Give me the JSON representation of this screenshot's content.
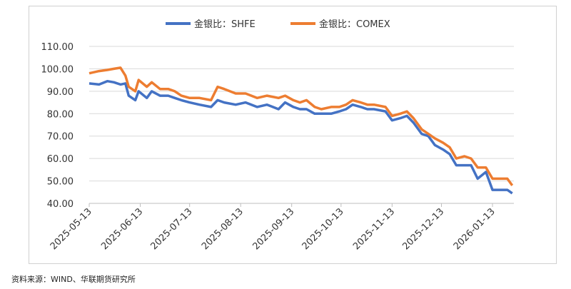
{
  "chart_data": {
    "type": "line",
    "title": "",
    "xlabel": "",
    "ylabel": "",
    "ylim": [
      40,
      110
    ],
    "yticks": [
      "40.00",
      "50.00",
      "60.00",
      "70.00",
      "80.00",
      "90.00",
      "100.00",
      "110.00"
    ],
    "xticks": [
      "2025-05-13",
      "2025-06-13",
      "2025-07-13",
      "2025-08-13",
      "2025-09-13",
      "2025-10-13",
      "2025-11-13",
      "2025-12-13",
      "2026-01-13"
    ],
    "grid": "horizontal",
    "legend": "top",
    "x": [
      "2025-05-13",
      "2025-05-19",
      "2025-05-24",
      "2025-05-28",
      "2025-06-01",
      "2025-06-04",
      "2025-06-06",
      "2025-06-10",
      "2025-06-12",
      "2025-06-17",
      "2025-06-20",
      "2025-06-25",
      "2025-06-30",
      "2025-07-04",
      "2025-07-08",
      "2025-07-13",
      "2025-07-19",
      "2025-07-26",
      "2025-07-30",
      "2025-08-03",
      "2025-08-10",
      "2025-08-16",
      "2025-08-23",
      "2025-08-29",
      "2025-09-05",
      "2025-09-09",
      "2025-09-14",
      "2025-09-18",
      "2025-09-22",
      "2025-09-27",
      "2025-10-01",
      "2025-10-07",
      "2025-10-12",
      "2025-10-16",
      "2025-10-20",
      "2025-10-25",
      "2025-10-29",
      "2025-11-02",
      "2025-11-09",
      "2025-11-13",
      "2025-11-18",
      "2025-11-22",
      "2025-11-26",
      "2025-12-01",
      "2025-12-05",
      "2025-12-09",
      "2025-12-14",
      "2025-12-18",
      "2025-12-22",
      "2025-12-27",
      "2025-12-31",
      "2026-01-04",
      "2026-01-09",
      "2026-01-13",
      "2026-01-17",
      "2026-01-22",
      "2026-01-25"
    ],
    "series": [
      {
        "name": "金银比：SHFE",
        "color": "#4472c4",
        "values": [
          93.5,
          93,
          94.5,
          94,
          93,
          93.5,
          88,
          86,
          90,
          87,
          90,
          88,
          88,
          87,
          86,
          85,
          84,
          83,
          86,
          85,
          84,
          85,
          83,
          84,
          82,
          85,
          83,
          82,
          82,
          80,
          80,
          80,
          81,
          82,
          84,
          83,
          82,
          82,
          81,
          77,
          78,
          79,
          76,
          71,
          70,
          66,
          64,
          62,
          57,
          57,
          57,
          51,
          54,
          46,
          46,
          46,
          44.5
        ]
      },
      {
        "name": "金银比：COMEX",
        "color": "#ed7d31",
        "values": [
          98,
          99,
          99.5,
          100,
          100.5,
          97,
          92,
          90,
          95,
          92,
          94,
          91,
          91,
          90,
          88,
          87,
          87,
          86,
          92,
          91,
          89,
          89,
          87,
          88,
          87,
          88,
          86,
          85,
          86,
          83,
          82,
          83,
          83,
          84,
          86,
          85,
          84,
          84,
          83,
          79,
          80,
          81,
          78,
          73,
          71,
          69,
          67,
          65,
          60,
          61,
          60,
          56,
          56,
          51,
          51,
          51,
          48
        ]
      }
    ]
  },
  "source": "资料来源：WIND、华联期货研究所"
}
